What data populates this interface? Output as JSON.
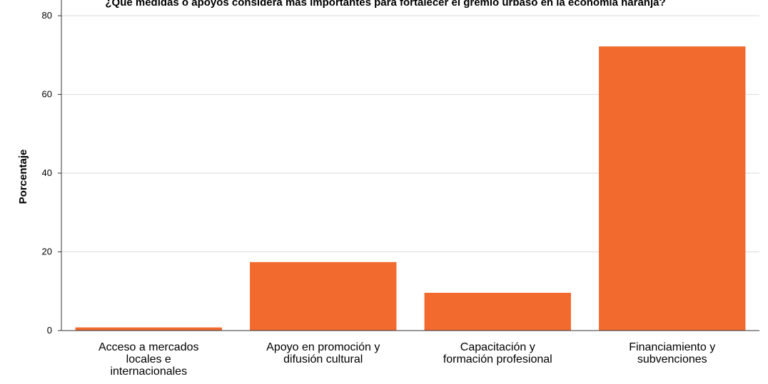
{
  "chart_data": {
    "type": "bar",
    "title": "¿Qué medidas o apoyos considera más importantes para fortalecer el gremio urbaso en la economía naranja?",
    "xlabel": "",
    "ylabel": "Porcentaje",
    "categories": [
      [
        "Acceso a mercados",
        "locales e",
        "internacionales"
      ],
      [
        "Apoyo en promoción y",
        "difusión cultural"
      ],
      [
        "Capacitación y",
        "formación profesional"
      ],
      [
        "Financiamiento y",
        "subvenciones"
      ]
    ],
    "values": [
      0.8,
      17.4,
      9.6,
      72.2
    ],
    "ylim": [
      0,
      84
    ],
    "yticks": [
      0,
      20,
      40,
      60,
      80
    ],
    "grid": true,
    "bar_color": "#f26a2e",
    "axis_color": "#333333",
    "grid_color": "#d9d9d9"
  }
}
